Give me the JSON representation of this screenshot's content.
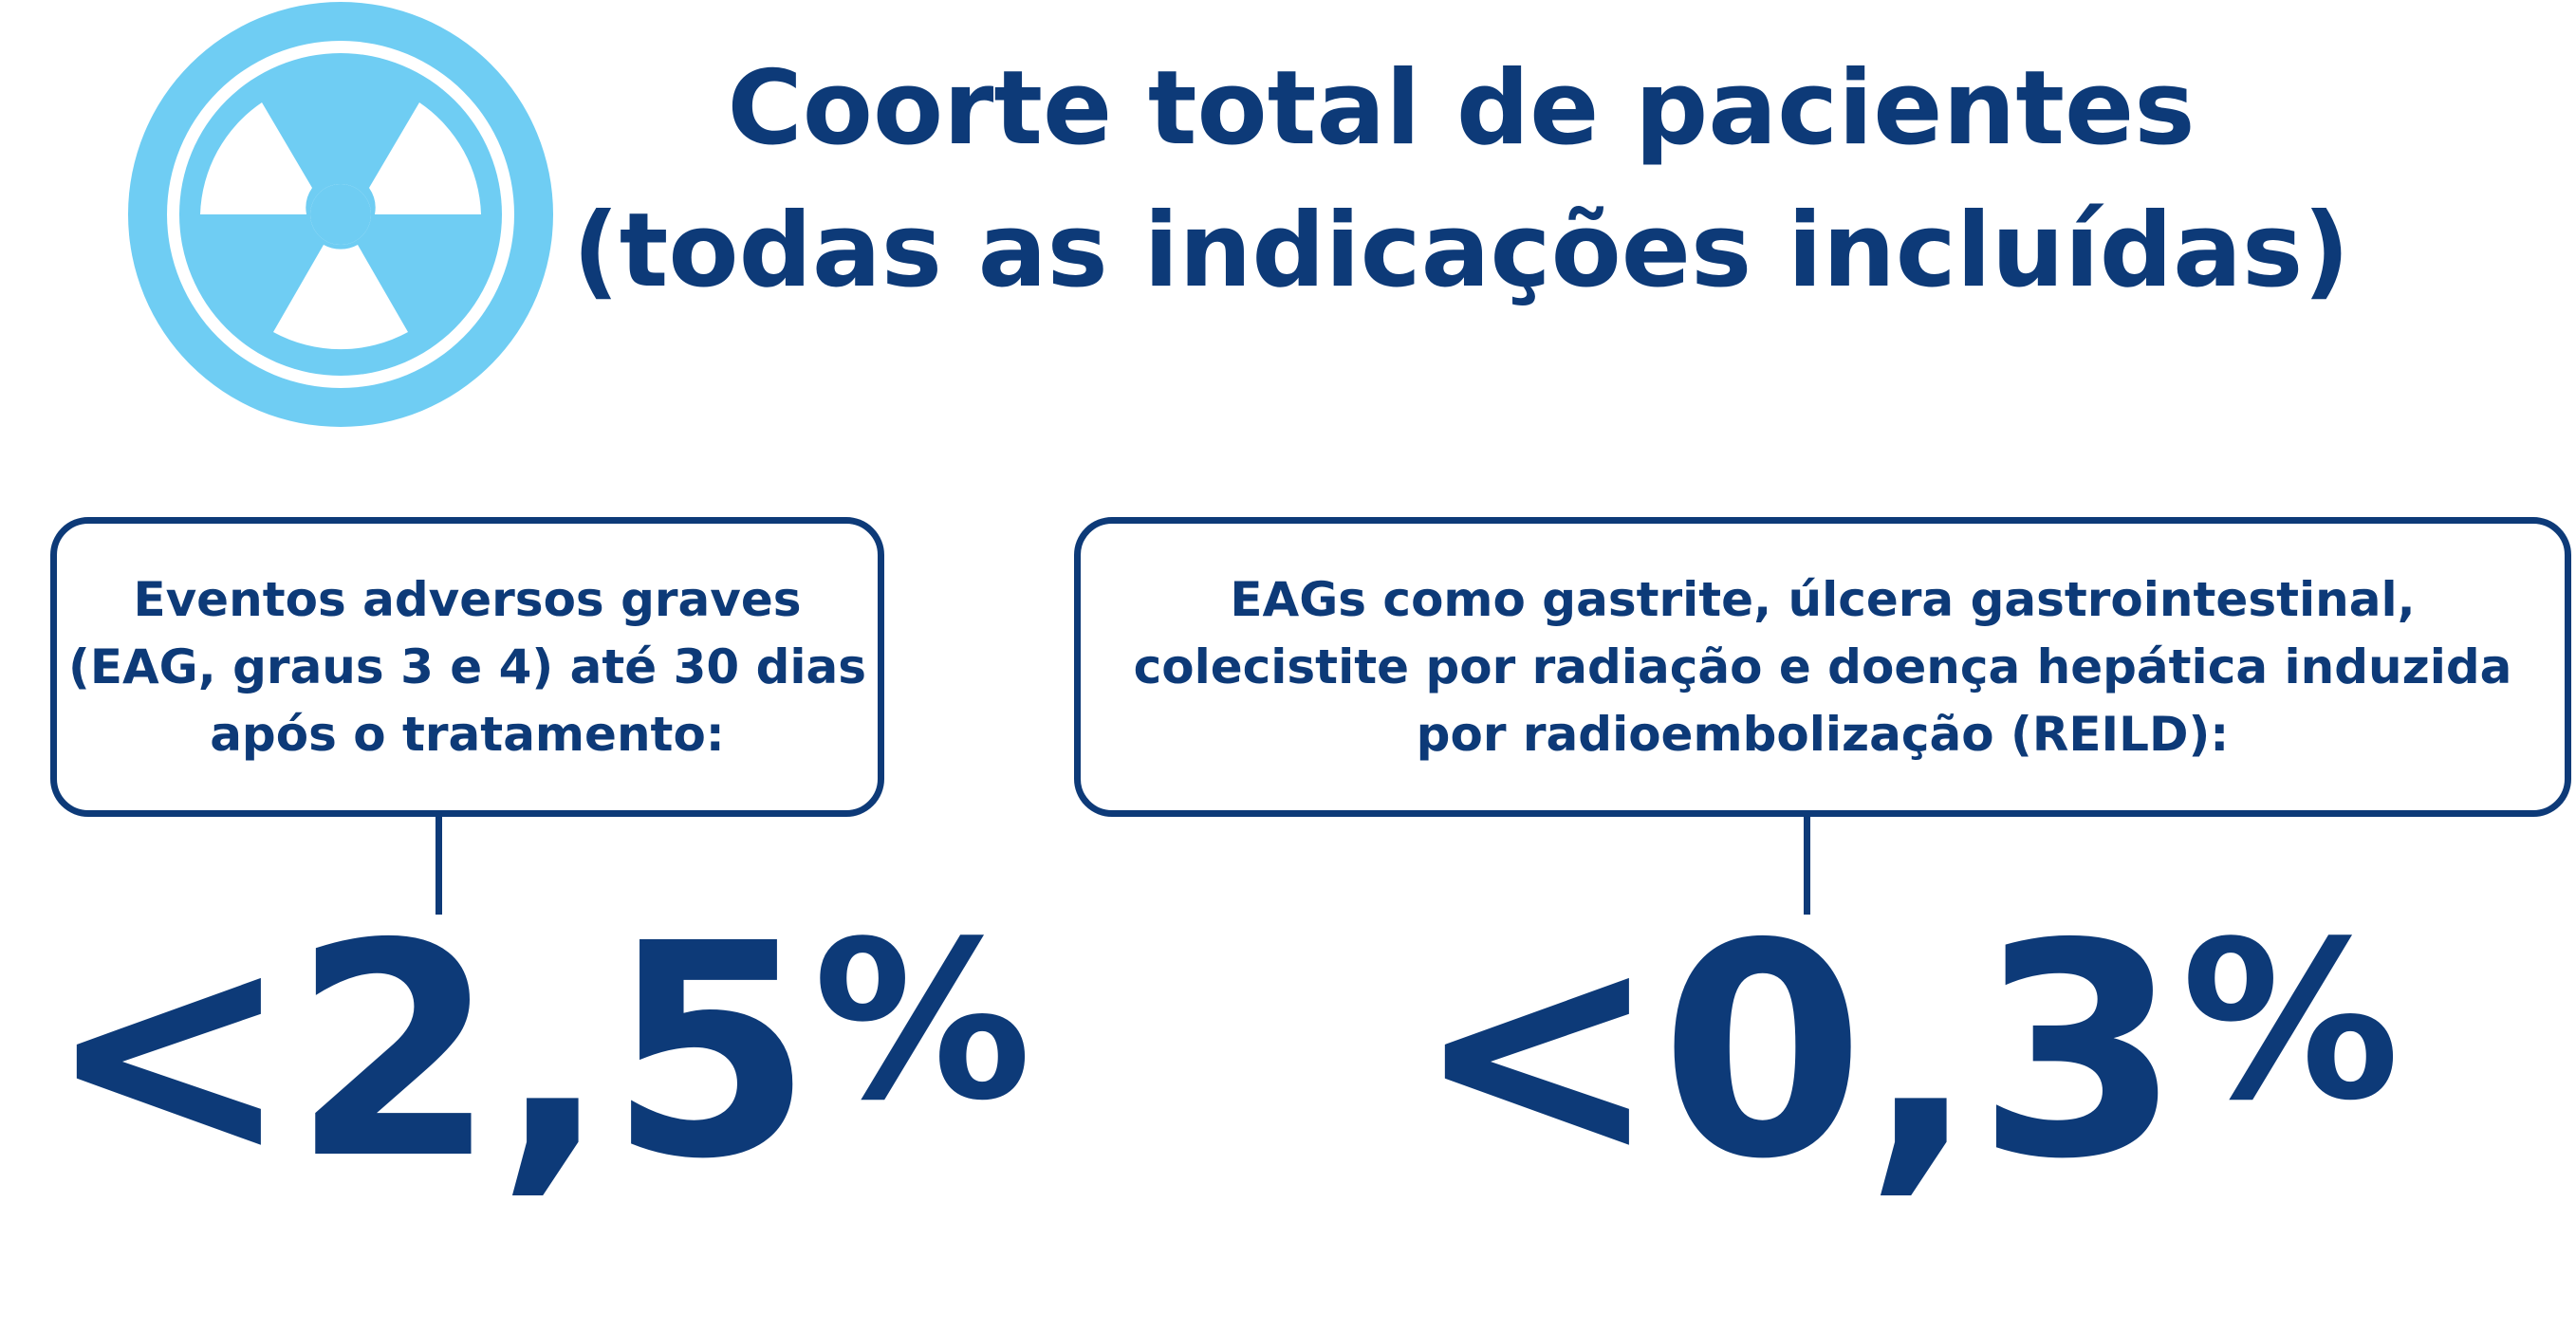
{
  "header": {
    "title_line1": "Coorte total de pacientes",
    "title_line2": "(todas as indicações incluídas)"
  },
  "icon": {
    "name": "radiation-icon",
    "color": "#6fcdf3"
  },
  "colors": {
    "primary": "#0d3a78",
    "accent": "#6fcdf3"
  },
  "left_card": {
    "line1": "Eventos adversos graves",
    "line2": "(EAG, graus 3 e 4) até 30 dias",
    "line3": "após o tratamento:",
    "value": "<2,5",
    "unit": "%"
  },
  "right_card": {
    "line1": "EAGs como gastrite, úlcera gastrointestinal,",
    "line2": "colecistite por radiação e doença hepática induzida",
    "line3": "por radioembolização (REILD):",
    "value": "<0,3",
    "unit": "%"
  }
}
